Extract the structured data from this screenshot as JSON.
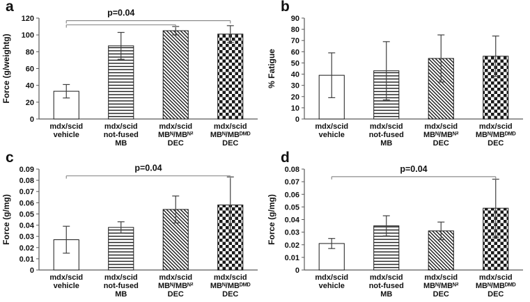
{
  "figure_title": "",
  "accent_colors": {
    "bar_stroke": "#1a1a1a",
    "axis": "#595959",
    "error_bar": "#3f3f3f",
    "significance_line": "#8c8c8c",
    "text": "#111111"
  },
  "chart_data": [
    {
      "panel": "a",
      "type": "bar",
      "title": "",
      "xlabel": "",
      "ylabel": "Force (g/weightg)",
      "ylim": [
        0,
        120
      ],
      "ystep": 20,
      "ytick_decimals": 0,
      "grid": false,
      "legend": false,
      "categories": [
        [
          "mdx/scid",
          "vehicle"
        ],
        [
          "mdx/scid",
          "not-fused",
          "MB"
        ],
        [
          "mdx/scid",
          "MBᴺ/MBᴺ²",
          "DEC"
        ],
        [
          "mdx/scid",
          "MBᴺ/MBᴰᴹᴰ",
          "DEC"
        ]
      ],
      "values": [
        33,
        87,
        105,
        101
      ],
      "errors": [
        8,
        16,
        5,
        10
      ],
      "bar_patterns": [
        "solid-white",
        "horizontal-lines",
        "diagonal-lines",
        "checkerboard"
      ],
      "annotation": {
        "text": "p=0.04",
        "significance_lines": [
          {
            "from_bar": 0,
            "to_bar": 2,
            "y": 112
          },
          {
            "from_bar": 0,
            "to_bar": 3,
            "y": 117
          }
        ]
      }
    },
    {
      "panel": "b",
      "type": "bar",
      "title": "",
      "xlabel": "",
      "ylabel": "% Fatigue",
      "ylim": [
        0,
        90
      ],
      "ystep": 10,
      "ytick_decimals": 0,
      "grid": false,
      "legend": false,
      "categories": [
        [
          "mdx/scid",
          "vehicle"
        ],
        [
          "mdx/scid",
          "not-fused",
          "MB"
        ],
        [
          "mdx/scid",
          "MBᴺ/MBᴺ²",
          "DEC"
        ],
        [
          "mdx/scid",
          "MBᴺ/MBᴰᴹᴰ",
          "DEC"
        ]
      ],
      "values": [
        39,
        43,
        54,
        56
      ],
      "errors": [
        20,
        26,
        21,
        18
      ],
      "bar_patterns": [
        "solid-white",
        "horizontal-lines",
        "diagonal-lines",
        "checkerboard"
      ],
      "annotation": null
    },
    {
      "panel": "c",
      "type": "bar",
      "title": "",
      "xlabel": "",
      "ylabel": "Force (g/mg)",
      "ylim": [
        0,
        0.09
      ],
      "ystep": 0.01,
      "ytick_decimals": 2,
      "grid": false,
      "legend": false,
      "categories": [
        [
          "mdx/scid",
          "vehicle"
        ],
        [
          "mdx/scid",
          "not-fused",
          "MB"
        ],
        [
          "mdx/scid",
          "MBᴺ/MBᴺ²",
          "DEC"
        ],
        [
          "mdx/scid",
          "MBᴺ/MBᴰᴹᴰ",
          "DEC"
        ]
      ],
      "values": [
        0.027,
        0.038,
        0.054,
        0.058
      ],
      "errors": [
        0.012,
        0.005,
        0.012,
        0.025
      ],
      "bar_patterns": [
        "solid-white",
        "horizontal-lines",
        "diagonal-lines",
        "checkerboard"
      ],
      "annotation": {
        "text": "p=0.04",
        "significance_lines": [
          {
            "from_bar": 0,
            "to_bar": 3,
            "y": 0.084
          }
        ]
      }
    },
    {
      "panel": "d",
      "type": "bar",
      "title": "",
      "xlabel": "",
      "ylabel": "Force (g/mg)",
      "ylim": [
        0,
        0.08
      ],
      "ystep": 0.01,
      "ytick_decimals": 2,
      "grid": false,
      "legend": false,
      "categories": [
        [
          "mdx/scid",
          "vehicle"
        ],
        [
          "mdx/scid",
          "not-fused",
          "MB"
        ],
        [
          "mdx/scid",
          "MBᴺ/MBᴺ²",
          "DEC"
        ],
        [
          "mdx/scid",
          "MBᴺ/MBᴰᴹᴰ",
          "DEC"
        ]
      ],
      "values": [
        0.021,
        0.035,
        0.031,
        0.049
      ],
      "errors": [
        0.004,
        0.008,
        0.007,
        0.023
      ],
      "bar_patterns": [
        "solid-white",
        "horizontal-lines",
        "diagonal-lines",
        "checkerboard"
      ],
      "annotation": {
        "text": "p=0.04",
        "significance_lines": [
          {
            "from_bar": 0,
            "to_bar": 3,
            "y": 0.074
          }
        ]
      }
    }
  ]
}
